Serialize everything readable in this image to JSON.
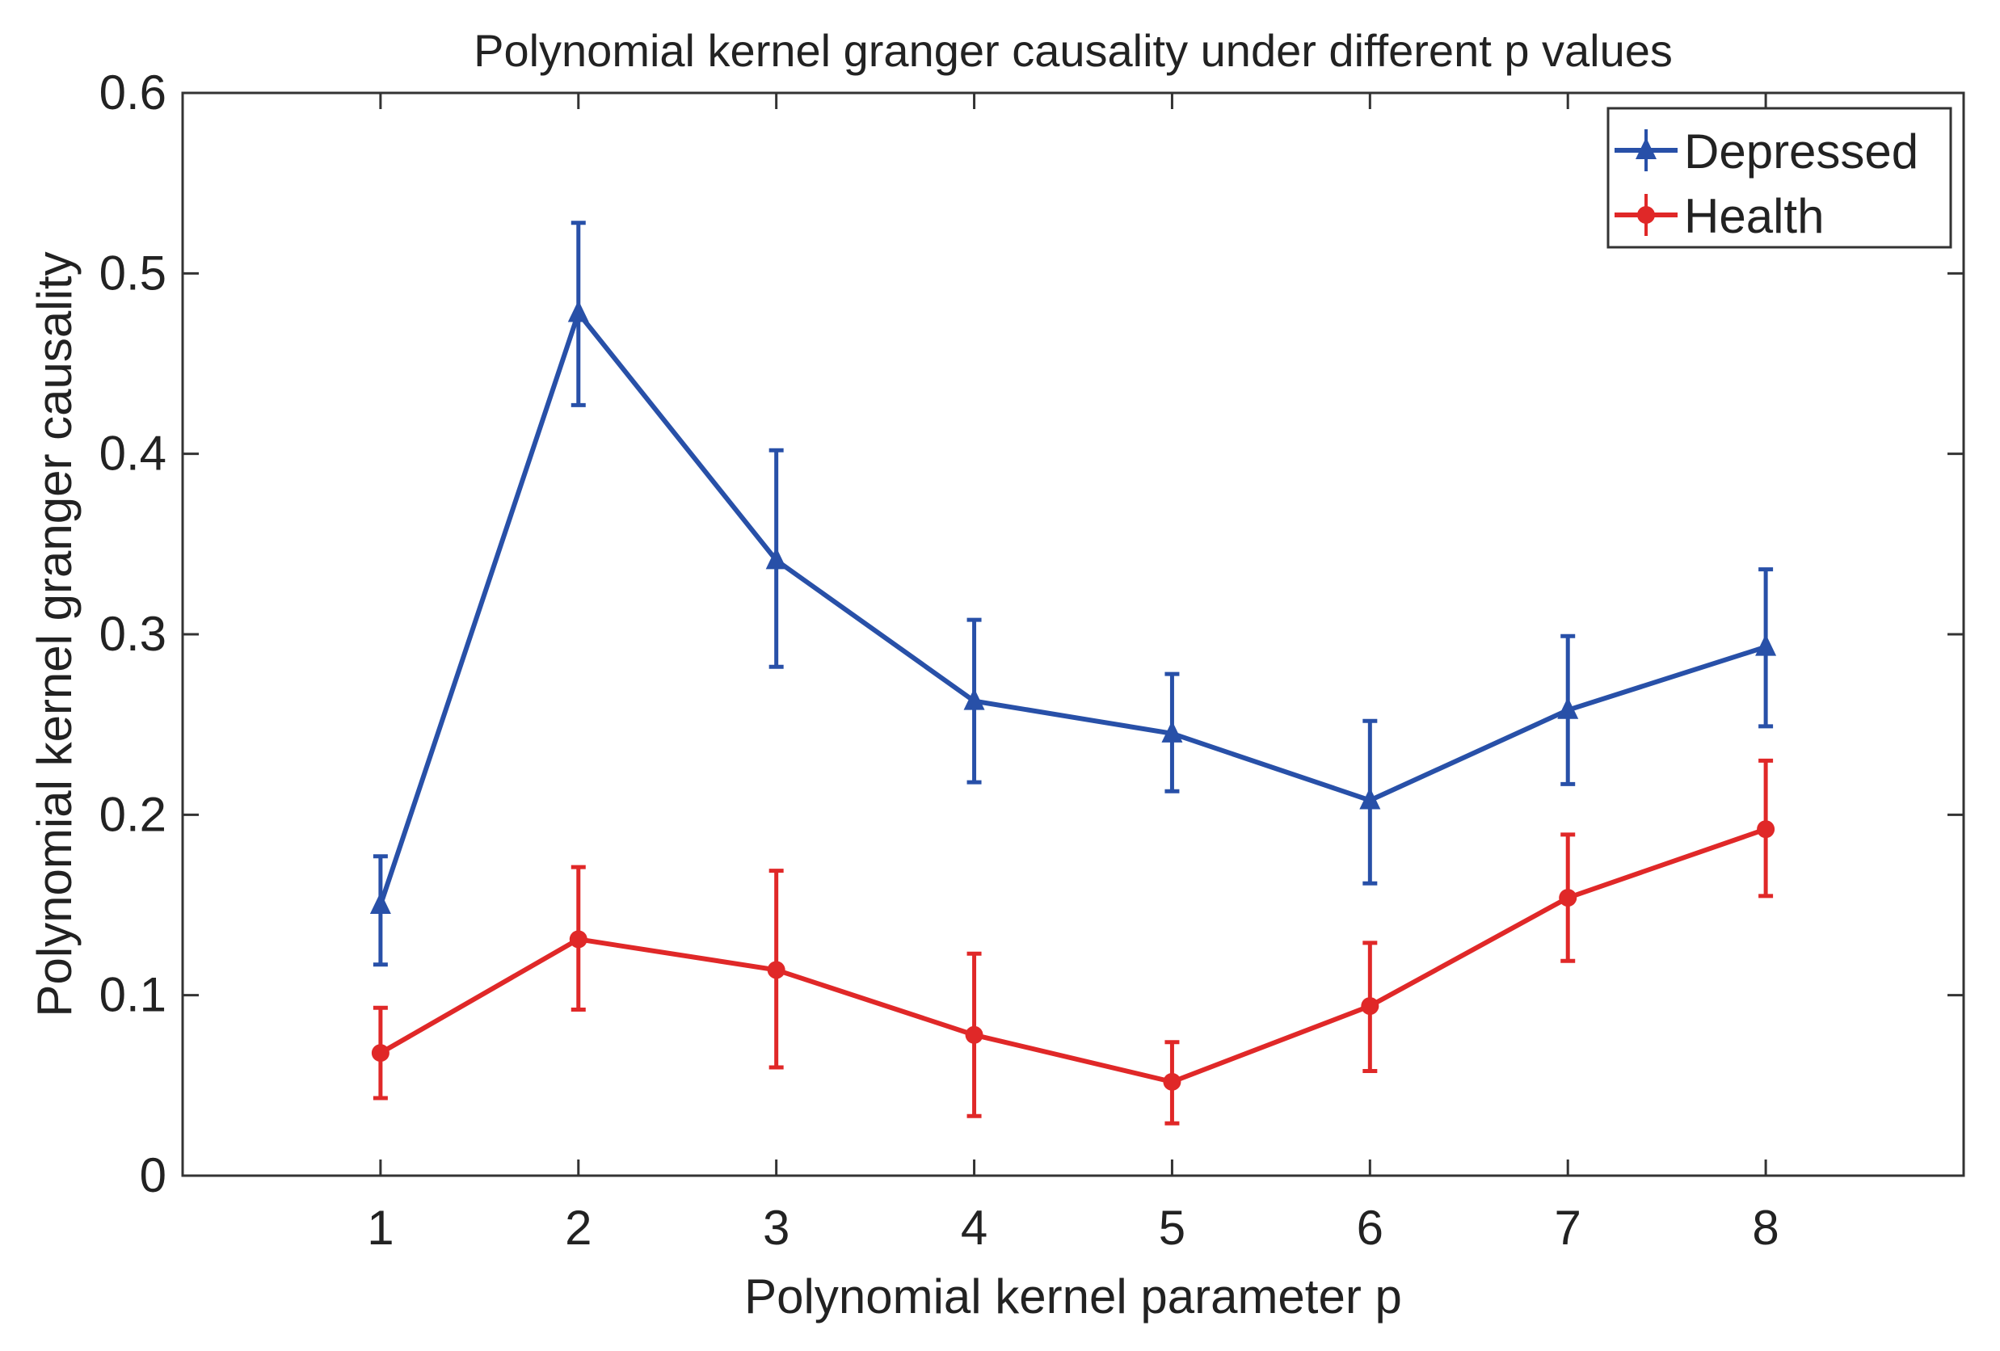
{
  "chart_data": {
    "type": "line",
    "title": "Polynomial kernel granger causality under different p values",
    "xlabel": "Polynomial kernel parameter p",
    "ylabel": "Polynomial kernel granger causality",
    "xlim": [
      0,
      9
    ],
    "ylim": [
      0,
      0.6
    ],
    "xticks": [
      1,
      2,
      3,
      4,
      5,
      6,
      7,
      8
    ],
    "yticks": [
      0,
      0.1,
      0.2,
      0.3,
      0.4,
      0.5,
      0.6
    ],
    "ytick_labels": [
      "0",
      "0.1",
      "0.2",
      "0.3",
      "0.4",
      "0.5",
      "0.6"
    ],
    "grid": false,
    "legend_position": "top-right",
    "x": [
      1,
      2,
      3,
      4,
      5,
      6,
      7,
      8
    ],
    "series": [
      {
        "name": "Depressed",
        "color": "#2850a8",
        "marker": "triangle",
        "values": [
          0.15,
          0.478,
          0.341,
          0.263,
          0.245,
          0.208,
          0.258,
          0.293
        ],
        "upper": [
          0.177,
          0.528,
          0.402,
          0.308,
          0.278,
          0.252,
          0.299,
          0.336
        ],
        "lower": [
          0.117,
          0.427,
          0.282,
          0.218,
          0.213,
          0.162,
          0.217,
          0.249
        ]
      },
      {
        "name": "Health",
        "color": "#e02828",
        "marker": "circle",
        "values": [
          0.068,
          0.131,
          0.114,
          0.078,
          0.052,
          0.094,
          0.154,
          0.192
        ],
        "upper": [
          0.093,
          0.171,
          0.169,
          0.123,
          0.074,
          0.129,
          0.189,
          0.23
        ],
        "lower": [
          0.043,
          0.092,
          0.06,
          0.033,
          0.029,
          0.058,
          0.119,
          0.155
        ]
      }
    ]
  }
}
